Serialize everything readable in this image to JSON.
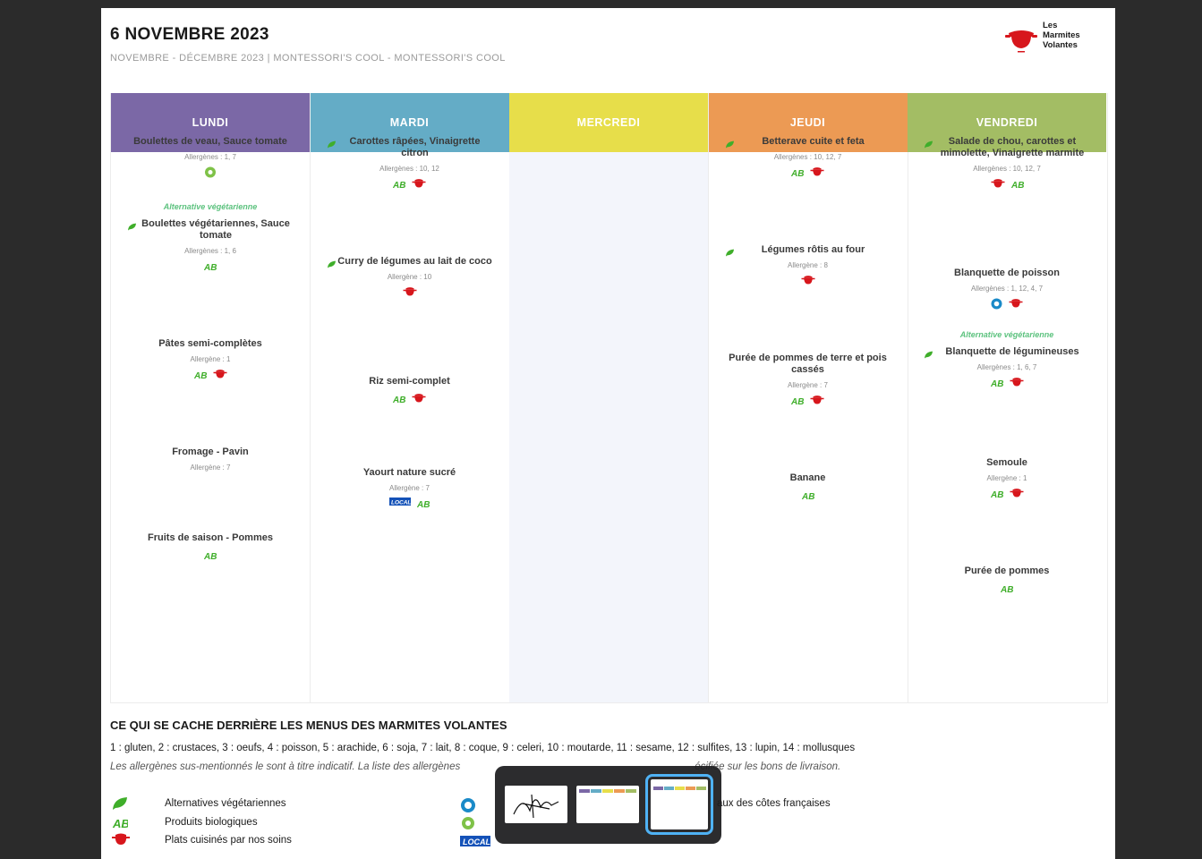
{
  "header": {
    "date_title": "6 NOVEMBRE 2023",
    "subtitle": "NOVEMBRE - DÉCEMBRE 2023 | MONTESSORI'S COOL - MONTESSORI'S COOL",
    "logo": {
      "line1": "Les",
      "line2": "Marmites",
      "line3": "Volantes"
    }
  },
  "colors": {
    "lundi": "#7b68a6",
    "mardi": "#64acc6",
    "mercredi": "#e7de4a",
    "jeudi": "#ec9a54",
    "vendredi": "#a3bd64",
    "alt_green": "#5cc27e",
    "pot_red": "#d7161c"
  },
  "days": [
    {
      "name": "LUNDI",
      "dishes": [
        {
          "name": "Boulettes de veau, Sauce tomate",
          "allergens": "Allergènes : 1, 7",
          "leaf": false,
          "icons": [
            "recycle-icon"
          ]
        },
        {
          "alt": "Alternative végétarienne",
          "name": "Boulettes végétariennes, Sauce tomate",
          "allergens": "Allergènes : 1, 6",
          "leaf": true,
          "icons": [
            "ab-bio-icon"
          ]
        },
        {
          "name": "Pâtes semi-complètes",
          "allergens": "Allergène : 1",
          "leaf": false,
          "icons": [
            "ab-bio-icon",
            "pot-icon"
          ]
        },
        {
          "name": "Fromage - Pavin",
          "allergens": "Allergène : 7",
          "leaf": false,
          "icons": []
        },
        {
          "name": "Fruits de saison - Pommes",
          "allergens": "",
          "leaf": false,
          "icons": [
            "ab-bio-icon"
          ]
        }
      ]
    },
    {
      "name": "MARDI",
      "dishes": [
        {
          "name": "Carottes râpées, Vinaigrette citron",
          "allergens": "Allergènes : 10, 12",
          "leaf": true,
          "icons": [
            "ab-bio-icon",
            "pot-icon"
          ]
        },
        {
          "name": "Curry de légumes au lait de coco",
          "allergens": "Allergène : 10",
          "leaf": true,
          "icons": [
            "pot-icon"
          ]
        },
        {
          "name": "Riz semi-complet",
          "allergens": "",
          "leaf": false,
          "icons": [
            "ab-bio-icon",
            "pot-icon"
          ]
        },
        {
          "name": "Yaourt nature sucré",
          "allergens": "Allergène : 7",
          "leaf": false,
          "icons": [
            "local-icon",
            "ab-bio-icon"
          ]
        }
      ]
    },
    {
      "name": "MERCREDI",
      "dishes": []
    },
    {
      "name": "JEUDI",
      "dishes": [
        {
          "name": "Betterave cuite et feta",
          "allergens": "Allergènes : 10, 12, 7",
          "leaf": true,
          "icons": [
            "ab-bio-icon",
            "pot-icon"
          ]
        },
        {
          "name": "Légumes rôtis au four",
          "allergens": "Allergène : 8",
          "leaf": true,
          "icons": [
            "pot-icon"
          ]
        },
        {
          "name": "Purée de pommes de terre et pois cassés",
          "allergens": "Allergène : 7",
          "leaf": false,
          "icons": [
            "ab-bio-icon",
            "pot-icon"
          ]
        },
        {
          "name": "Banane",
          "allergens": "",
          "leaf": false,
          "icons": [
            "ab-bio-icon"
          ]
        }
      ]
    },
    {
      "name": "VENDREDI",
      "dishes": [
        {
          "name": "Salade de chou, carottes et mimolette, Vinaigrette marmite",
          "allergens": "Allergènes : 10, 12, 7",
          "leaf": true,
          "icons": [
            "pot-icon",
            "ab-bio-icon"
          ]
        },
        {
          "name": "Blanquette de poisson",
          "allergens": "Allergènes : 1, 12, 4, 7",
          "leaf": false,
          "icons": [
            "fish-label-icon",
            "pot-icon"
          ]
        },
        {
          "alt": "Alternative végétarienne",
          "name": "Blanquette de légumineuses",
          "allergens": "Allergènes : 1, 6, 7",
          "leaf": true,
          "icons": [
            "ab-bio-icon",
            "pot-icon"
          ]
        },
        {
          "name": "Semoule",
          "allergens": "Allergène : 1",
          "leaf": false,
          "icons": [
            "ab-bio-icon",
            "pot-icon"
          ]
        },
        {
          "name": "Purée de pommes",
          "allergens": "",
          "leaf": false,
          "icons": [
            "ab-bio-icon"
          ]
        }
      ]
    }
  ],
  "legend": {
    "title": "CE QUI SE CACHE DERRIÈRE LES MENUS DES MARMITES VOLANTES",
    "allergen_list": "1 : gluten, 2 : crustaces, 3 : oeufs, 4 : poisson, 5 : arachide, 6 : soja, 7 : lait, 8 : coque, 9 : celeri, 10 : moutarde, 11 : sesame, 12 : sulfites, 13 : lupin, 14 : mollusques",
    "note_start": "Les allergènes sus-mentionnés le sont à titre indicatif. La liste des allergènes",
    "note_end": "écifiée sur les bons de livraison.",
    "items": [
      {
        "label": "Alternatives végétariennes",
        "icon": "leaf-icon"
      },
      {
        "label": "Produits biologiques",
        "icon": "ab-bio-icon"
      },
      {
        "label": "Plats cuisinés par nos soins",
        "icon": "pot-icon"
      },
      {
        "label": "aux des côtes françaises",
        "icon": "fish-label-icon"
      }
    ]
  },
  "switcher": {
    "thumbnails": [
      "signature-window",
      "menu-window",
      "menu-window-active"
    ]
  }
}
